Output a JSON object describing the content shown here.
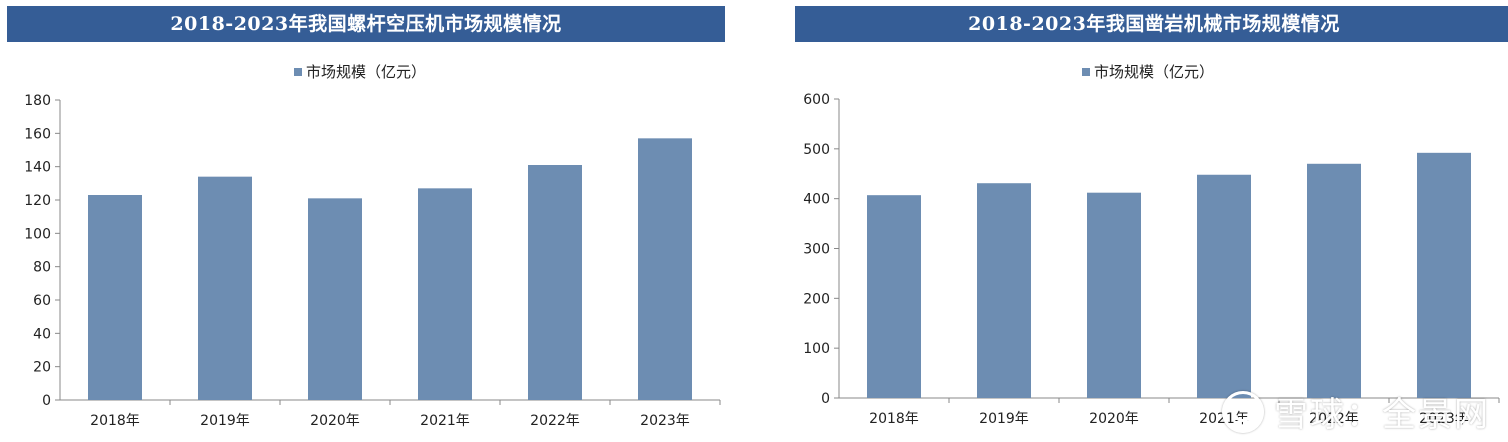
{
  "chart_data": [
    {
      "type": "bar",
      "title": "2018-2023年我国螺杆空压机市场规模情况",
      "categories": [
        "2018年",
        "2019年",
        "2020年",
        "2021年",
        "2022年",
        "2023年"
      ],
      "series": [
        {
          "name": "市场规模（亿元）",
          "values": [
            123,
            134,
            121,
            127,
            141,
            157
          ]
        }
      ],
      "ylim": [
        0,
        180
      ],
      "yticks": [
        "0",
        "20",
        "40",
        "60",
        "80",
        "100",
        "120",
        "140",
        "160",
        "180"
      ],
      "legend_position": "top-center",
      "grid": false,
      "colors": {
        "bar": "#6d8db2",
        "title_bg": "#355d96"
      }
    },
    {
      "type": "bar",
      "title": "2018-2023年我国凿岩机械市场规模情况",
      "categories": [
        "2018年",
        "2019年",
        "2020年",
        "2021年",
        "2022年",
        "2023年"
      ],
      "series": [
        {
          "name": "市场规模（亿元）",
          "values": [
            407,
            431,
            412,
            448,
            470,
            492
          ]
        }
      ],
      "ylim": [
        0,
        600
      ],
      "yticks": [
        "0",
        "100",
        "200",
        "300",
        "400",
        "500",
        "600"
      ],
      "legend_position": "top-center",
      "grid": false,
      "colors": {
        "bar": "#6d8db2",
        "title_bg": "#355d96"
      }
    }
  ],
  "watermark": {
    "text": "雪球：全景网",
    "icon": "snowball-logo-icon"
  }
}
